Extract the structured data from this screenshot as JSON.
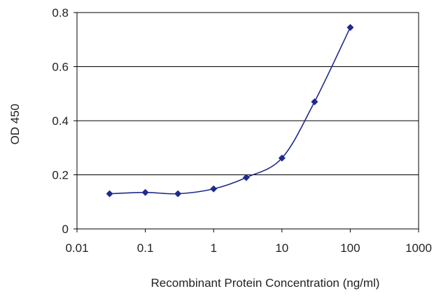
{
  "chart_data": {
    "type": "scatter",
    "title": "",
    "xlabel": "Recombinant Protein Concentration (ng/ml)",
    "ylabel": "OD 450",
    "x_scale": "log",
    "xlim": [
      0.01,
      1000
    ],
    "ylim": [
      0,
      0.8
    ],
    "x_ticks": [
      "0.01",
      "0.1",
      "1",
      "10",
      "100",
      "1000"
    ],
    "y_ticks": [
      "0",
      "0.2",
      "0.4",
      "0.6",
      "0.8"
    ],
    "grid": "horizontal",
    "legend": "none",
    "series": [
      {
        "color": "#1f2a8c",
        "marker": "diamond",
        "smooth": true,
        "points": [
          {
            "x": 0.03,
            "y": 0.13
          },
          {
            "x": 0.1,
            "y": 0.135
          },
          {
            "x": 0.3,
            "y": 0.13
          },
          {
            "x": 1,
            "y": 0.148
          },
          {
            "x": 3,
            "y": 0.19
          },
          {
            "x": 10,
            "y": 0.262
          },
          {
            "x": 30,
            "y": 0.47
          },
          {
            "x": 100,
            "y": 0.745
          }
        ]
      }
    ]
  }
}
